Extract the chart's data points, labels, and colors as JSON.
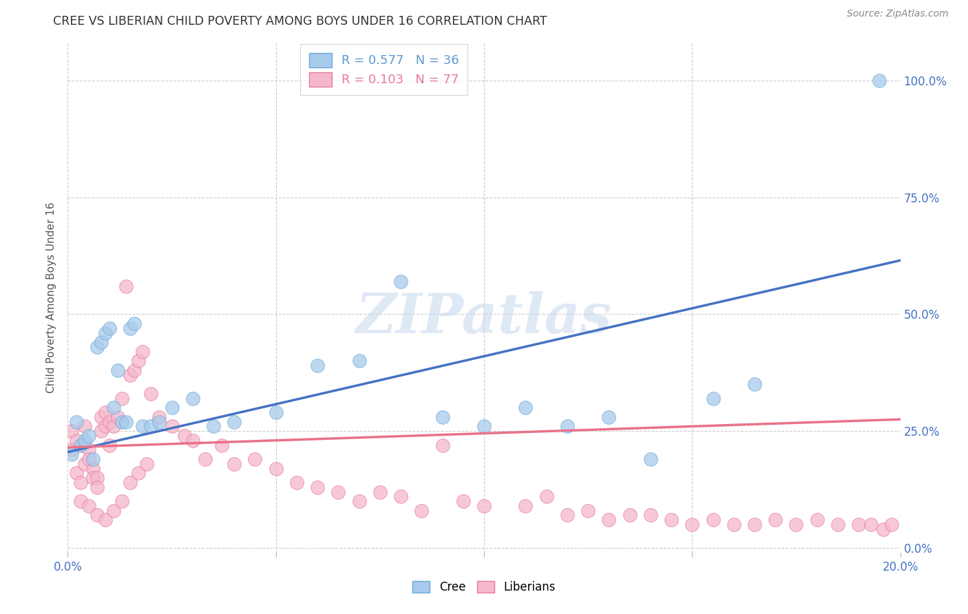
{
  "title": "CREE VS LIBERIAN CHILD POVERTY AMONG BOYS UNDER 16 CORRELATION CHART",
  "source": "Source: ZipAtlas.com",
  "ylabel": "Child Poverty Among Boys Under 16",
  "xlim": [
    0.0,
    0.2
  ],
  "ylim": [
    -0.01,
    1.08
  ],
  "xticks": [
    0.0,
    0.05,
    0.1,
    0.15,
    0.2
  ],
  "xtick_labels": [
    "0.0%",
    "",
    "",
    "",
    "20.0%"
  ],
  "yticks": [
    0.0,
    0.25,
    0.5,
    0.75,
    1.0
  ],
  "ytick_labels": [
    "0.0%",
    "25.0%",
    "50.0%",
    "75.0%",
    "100.0%"
  ],
  "cree_color": "#A8CAEC",
  "cree_edge_color": "#6AAAD4",
  "liberian_color": "#F5B8CB",
  "liberian_edge_color": "#E87A9A",
  "cree_line_color": "#4472C4",
  "liberian_line_color": "#E8728A",
  "legend_cree_text": "R = 0.577   N = 36",
  "legend_lib_text": "R = 0.103   N = 77",
  "legend_cree_color": "#5B9BD5",
  "legend_lib_color": "#E87A9A",
  "watermark_text": "ZIPatlas",
  "watermark_color": "#C5D8EE",
  "cree_x": [
    0.001,
    0.002,
    0.003,
    0.004,
    0.005,
    0.006,
    0.007,
    0.008,
    0.009,
    0.01,
    0.011,
    0.012,
    0.013,
    0.014,
    0.015,
    0.016,
    0.018,
    0.02,
    0.022,
    0.025,
    0.03,
    0.035,
    0.04,
    0.05,
    0.06,
    0.07,
    0.08,
    0.09,
    0.1,
    0.11,
    0.12,
    0.13,
    0.14,
    0.155,
    0.165,
    0.195
  ],
  "cree_y": [
    0.2,
    0.27,
    0.22,
    0.23,
    0.24,
    0.19,
    0.43,
    0.44,
    0.46,
    0.47,
    0.3,
    0.38,
    0.27,
    0.27,
    0.47,
    0.48,
    0.26,
    0.26,
    0.27,
    0.3,
    0.32,
    0.26,
    0.27,
    0.29,
    0.39,
    0.4,
    0.57,
    0.28,
    0.26,
    0.3,
    0.26,
    0.28,
    0.19,
    0.32,
    0.35,
    1.0
  ],
  "liberian_x": [
    0.001,
    0.001,
    0.002,
    0.002,
    0.003,
    0.003,
    0.004,
    0.004,
    0.005,
    0.005,
    0.006,
    0.006,
    0.007,
    0.007,
    0.008,
    0.008,
    0.009,
    0.009,
    0.01,
    0.01,
    0.011,
    0.012,
    0.013,
    0.014,
    0.015,
    0.016,
    0.017,
    0.018,
    0.02,
    0.022,
    0.025,
    0.028,
    0.03,
    0.033,
    0.037,
    0.04,
    0.045,
    0.05,
    0.055,
    0.06,
    0.065,
    0.07,
    0.075,
    0.08,
    0.085,
    0.09,
    0.095,
    0.1,
    0.11,
    0.115,
    0.12,
    0.125,
    0.13,
    0.135,
    0.14,
    0.145,
    0.15,
    0.155,
    0.16,
    0.165,
    0.17,
    0.175,
    0.18,
    0.185,
    0.19,
    0.193,
    0.196,
    0.198,
    0.003,
    0.005,
    0.007,
    0.009,
    0.011,
    0.013,
    0.015,
    0.017,
    0.019
  ],
  "liberian_y": [
    0.25,
    0.21,
    0.23,
    0.16,
    0.22,
    0.14,
    0.18,
    0.26,
    0.21,
    0.19,
    0.17,
    0.15,
    0.15,
    0.13,
    0.25,
    0.28,
    0.29,
    0.26,
    0.27,
    0.22,
    0.26,
    0.28,
    0.32,
    0.56,
    0.37,
    0.38,
    0.4,
    0.42,
    0.33,
    0.28,
    0.26,
    0.24,
    0.23,
    0.19,
    0.22,
    0.18,
    0.19,
    0.17,
    0.14,
    0.13,
    0.12,
    0.1,
    0.12,
    0.11,
    0.08,
    0.22,
    0.1,
    0.09,
    0.09,
    0.11,
    0.07,
    0.08,
    0.06,
    0.07,
    0.07,
    0.06,
    0.05,
    0.06,
    0.05,
    0.05,
    0.06,
    0.05,
    0.06,
    0.05,
    0.05,
    0.05,
    0.04,
    0.05,
    0.1,
    0.09,
    0.07,
    0.06,
    0.08,
    0.1,
    0.14,
    0.16,
    0.18
  ],
  "cree_trend_x": [
    0.0,
    0.2
  ],
  "cree_trend_y": [
    0.205,
    0.615
  ],
  "liberian_trend_x": [
    0.0,
    0.2
  ],
  "liberian_trend_y": [
    0.215,
    0.275
  ]
}
